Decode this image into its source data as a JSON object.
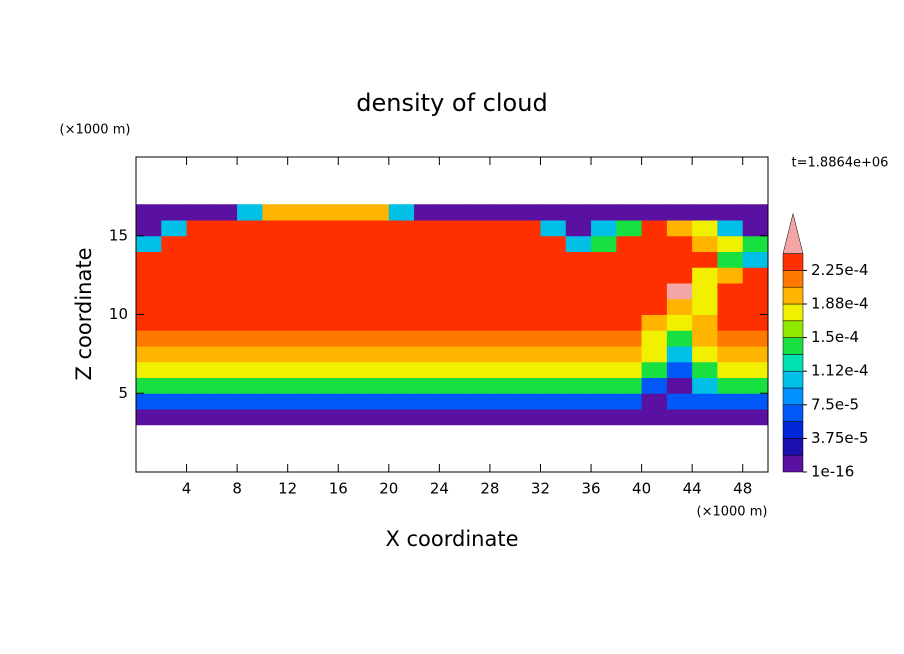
{
  "chart_data": {
    "type": "contour",
    "title": "density of cloud",
    "x_label": "X coordinate",
    "y_label": "Z coordinate",
    "x_unit": "(×1000 m)",
    "y_unit": "(×1000 m)",
    "time_label": "t=1.8864e+06",
    "xlim": [
      0,
      50
    ],
    "ylim": [
      0,
      20
    ],
    "xticks": [
      4,
      8,
      12,
      16,
      20,
      24,
      28,
      32,
      36,
      40,
      44,
      48
    ],
    "yticks": [
      5,
      10,
      15
    ],
    "x": [
      1,
      3,
      5,
      7,
      9,
      11,
      13,
      15,
      17,
      19,
      21,
      23,
      25,
      27,
      29,
      31,
      33,
      35,
      37,
      39,
      41,
      43,
      45,
      47,
      49
    ],
    "y": [
      3.5,
      4.5,
      5.5,
      6.5,
      7.5,
      8.5,
      9.5,
      10.5,
      11.5,
      12.5,
      13.5,
      14.5,
      15.5,
      16.5
    ],
    "cell_width": 2,
    "cell_height": 1,
    "levels": [
      1e-16,
      1.875e-05,
      3.75e-05,
      5.625e-05,
      7.5e-05,
      9.375e-05,
      0.0001125,
      0.00013125,
      0.00015,
      0.00016875,
      0.0001875,
      0.00020625,
      0.000225,
      0.00024375
    ],
    "colors": [
      "#5a10a0",
      "#1c10b0",
      "#0028d8",
      "#0058f8",
      "#0090ff",
      "#00c0e8",
      "#00e0b0",
      "#18e040",
      "#90e800",
      "#f0f000",
      "#ffb400",
      "#ff7800",
      "#ff3000",
      "#f4a6a6"
    ],
    "colorbar_ticks": [
      {
        "value": 1e-16,
        "label": "1e-16"
      },
      {
        "value": 3.75e-05,
        "label": "3.75e-5"
      },
      {
        "value": 7.5e-05,
        "label": "7.5e-5"
      },
      {
        "value": 0.0001125,
        "label": "1.12e-4"
      },
      {
        "value": 0.00015,
        "label": "1.5e-4"
      },
      {
        "value": 0.0001875,
        "label": "1.88e-4"
      },
      {
        "value": 0.000225,
        "label": "2.25e-4"
      }
    ],
    "values": [
      [
        5e-06,
        5e-06,
        5e-06,
        5e-06,
        5e-06,
        5e-06,
        5e-06,
        5e-06,
        5e-06,
        5e-06,
        5e-06,
        5e-06,
        5e-06,
        5e-06,
        5e-06,
        5e-06,
        5e-06,
        5e-06,
        5e-06,
        5e-06,
        5e-06,
        5e-06,
        5e-06,
        5e-06,
        5e-06
      ],
      [
        6e-05,
        6e-05,
        6e-05,
        6e-05,
        6e-05,
        6e-05,
        6e-05,
        6e-05,
        6e-05,
        6e-05,
        6e-05,
        6e-05,
        6e-05,
        6e-05,
        6e-05,
        6e-05,
        6e-05,
        6e-05,
        6e-05,
        6e-05,
        5e-06,
        6e-05,
        6e-05,
        6e-05,
        6e-05
      ],
      [
        0.000135,
        0.000135,
        0.000135,
        0.000135,
        0.000135,
        0.000135,
        0.000135,
        0.000135,
        0.000135,
        0.000135,
        0.000135,
        0.000135,
        0.000135,
        0.000135,
        0.000135,
        0.000135,
        0.000135,
        0.000135,
        0.000135,
        0.000135,
        6e-05,
        5e-06,
        0.0001,
        0.000135,
        0.000135
      ],
      [
        0.000175,
        0.000175,
        0.000175,
        0.000175,
        0.000175,
        0.000175,
        0.000175,
        0.000175,
        0.000175,
        0.000175,
        0.000175,
        0.000175,
        0.000175,
        0.000175,
        0.000175,
        0.000175,
        0.000175,
        0.000175,
        0.000175,
        0.000175,
        0.000135,
        6e-05,
        0.000135,
        0.000175,
        0.000175
      ],
      [
        0.000205,
        0.000205,
        0.000205,
        0.000205,
        0.000205,
        0.000205,
        0.000205,
        0.000205,
        0.000205,
        0.000205,
        0.000205,
        0.000205,
        0.000205,
        0.000205,
        0.000205,
        0.000205,
        0.000205,
        0.000205,
        0.000205,
        0.000205,
        0.000175,
        0.0001,
        0.000175,
        0.000205,
        0.000205
      ],
      [
        0.000215,
        0.000215,
        0.000215,
        0.000215,
        0.000215,
        0.000215,
        0.000215,
        0.000215,
        0.000215,
        0.000215,
        0.000215,
        0.000215,
        0.000215,
        0.000215,
        0.000215,
        0.000215,
        0.000215,
        0.000215,
        0.000215,
        0.000215,
        0.000175,
        0.000135,
        0.000205,
        0.000215,
        0.000215
      ],
      [
        0.00023,
        0.00023,
        0.00023,
        0.00023,
        0.00023,
        0.00023,
        0.00023,
        0.00023,
        0.00023,
        0.00023,
        0.00023,
        0.00023,
        0.00023,
        0.00023,
        0.00023,
        0.00023,
        0.00023,
        0.00023,
        0.00023,
        0.00023,
        0.000205,
        0.000175,
        0.000205,
        0.00023,
        0.00023
      ],
      [
        0.00023,
        0.00023,
        0.00023,
        0.00023,
        0.00023,
        0.00023,
        0.00023,
        0.00023,
        0.00023,
        0.00023,
        0.00023,
        0.00023,
        0.00023,
        0.00023,
        0.00023,
        0.00023,
        0.00023,
        0.00023,
        0.00023,
        0.00023,
        0.00023,
        0.000205,
        0.000175,
        0.00023,
        0.00023
      ],
      [
        0.00023,
        0.00023,
        0.00023,
        0.00023,
        0.00023,
        0.00023,
        0.00023,
        0.00023,
        0.00023,
        0.00023,
        0.00023,
        0.00023,
        0.00023,
        0.00023,
        0.00023,
        0.00023,
        0.00023,
        0.00023,
        0.00023,
        0.00023,
        0.00023,
        0.00025,
        0.000175,
        0.00023,
        0.00023
      ],
      [
        0.00023,
        0.00023,
        0.00023,
        0.00023,
        0.00023,
        0.00023,
        0.00023,
        0.00023,
        0.00023,
        0.00023,
        0.00023,
        0.00023,
        0.00023,
        0.00023,
        0.00023,
        0.00023,
        0.00023,
        0.00023,
        0.00023,
        0.00023,
        0.00023,
        0.00023,
        0.000175,
        0.000205,
        0.00023
      ],
      [
        0.00023,
        0.00023,
        0.00023,
        0.00023,
        0.00023,
        0.00023,
        0.00023,
        0.00023,
        0.00023,
        0.00023,
        0.00023,
        0.00023,
        0.00023,
        0.00023,
        0.00023,
        0.00023,
        0.00023,
        0.00023,
        0.00023,
        0.00023,
        0.00023,
        0.00023,
        0.00023,
        0.000135,
        0.0001
      ],
      [
        0.0001,
        0.00023,
        0.00023,
        0.00023,
        0.00023,
        0.00023,
        0.00023,
        0.00023,
        0.00023,
        0.00023,
        0.00023,
        0.00023,
        0.00023,
        0.00023,
        0.00023,
        0.00023,
        0.00023,
        0.0001,
        0.000135,
        0.00023,
        0.00023,
        0.00023,
        0.000205,
        0.000175,
        0.000135
      ],
      [
        5e-06,
        0.0001,
        0.00023,
        0.00023,
        0.00023,
        0.00023,
        0.00023,
        0.00023,
        0.00023,
        0.00023,
        0.00023,
        0.00023,
        0.00023,
        0.00023,
        0.00023,
        0.00023,
        0.0001,
        5e-06,
        0.0001,
        0.000135,
        0.00023,
        0.000205,
        0.000175,
        0.0001,
        5e-06
      ],
      [
        5e-06,
        5e-06,
        5e-06,
        5e-06,
        0.0001,
        0.000205,
        0.000205,
        0.000205,
        0.000205,
        0.000205,
        0.0001,
        5e-06,
        5e-06,
        5e-06,
        5e-06,
        5e-06,
        5e-06,
        5e-06,
        5e-06,
        5e-06,
        5e-06,
        5e-06,
        5e-06,
        5e-06,
        5e-06
      ]
    ]
  }
}
